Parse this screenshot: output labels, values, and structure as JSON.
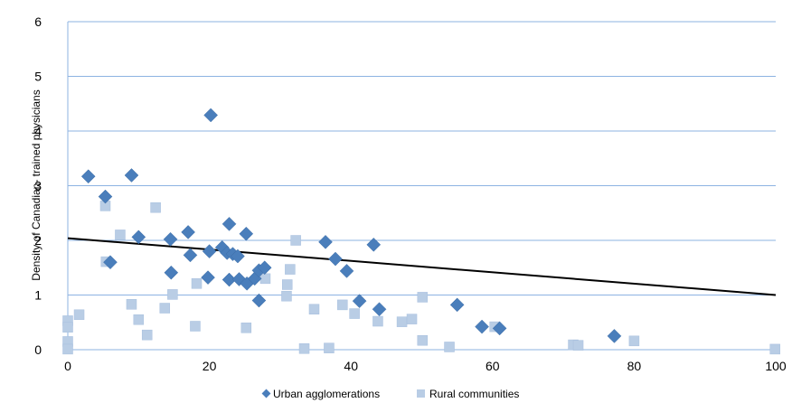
{
  "chart_data": {
    "type": "scatter",
    "title": "",
    "xlabel": "",
    "ylabel": "Density of Canadian- trained physicians",
    "xlim": [
      0,
      100
    ],
    "ylim": [
      0,
      6
    ],
    "xticks": [
      "0",
      "20",
      "40",
      "60",
      "80",
      "100"
    ],
    "yticks": [
      "0",
      "1",
      "2",
      "3",
      "4",
      "5",
      "6"
    ],
    "grid": "horizontal",
    "legend_position": "bottom",
    "series": [
      {
        "name": "Urban agglomerations",
        "marker": "diamond",
        "color": "#4A7EBB",
        "points": [
          [
            2.9,
            3.17
          ],
          [
            5.3,
            2.8
          ],
          [
            6,
            1.6
          ],
          [
            9,
            3.19
          ],
          [
            10,
            2.06
          ],
          [
            14.5,
            2.02
          ],
          [
            14.6,
            1.41
          ],
          [
            17,
            2.15
          ],
          [
            17.3,
            1.73
          ],
          [
            19.8,
            1.32
          ],
          [
            20,
            1.8
          ],
          [
            20.2,
            4.29
          ],
          [
            21.8,
            1.87
          ],
          [
            22.5,
            1.77
          ],
          [
            22.8,
            2.3
          ],
          [
            22.8,
            1.28
          ],
          [
            23.3,
            1.75
          ],
          [
            24,
            1.71
          ],
          [
            24.2,
            1.29
          ],
          [
            25.2,
            2.12
          ],
          [
            25.3,
            1.21
          ],
          [
            26.4,
            1.3
          ],
          [
            27,
            1.45
          ],
          [
            27,
            0.9
          ],
          [
            27.8,
            1.5
          ],
          [
            36.4,
            1.97
          ],
          [
            37.8,
            1.66
          ],
          [
            39.4,
            1.44
          ],
          [
            41.2,
            0.89
          ],
          [
            43.2,
            1.92
          ],
          [
            44,
            0.74
          ],
          [
            55,
            0.82
          ],
          [
            58.5,
            0.42
          ],
          [
            61,
            0.39
          ],
          [
            77.2,
            0.25
          ]
        ]
      },
      {
        "name": "Rural communities",
        "marker": "square",
        "color": "#B9CDE5",
        "points": [
          [
            0,
            0.53
          ],
          [
            0,
            0.41
          ],
          [
            0,
            0.15
          ],
          [
            0,
            0.01
          ],
          [
            1.6,
            0.64
          ],
          [
            5.3,
            2.63
          ],
          [
            5.4,
            1.61
          ],
          [
            7.4,
            2.1
          ],
          [
            9,
            0.83
          ],
          [
            10,
            0.55
          ],
          [
            11.2,
            0.27
          ],
          [
            12.4,
            2.6
          ],
          [
            13.7,
            0.76
          ],
          [
            14.8,
            1.01
          ],
          [
            18,
            0.43
          ],
          [
            18.2,
            1.21
          ],
          [
            25.2,
            0.4
          ],
          [
            27.9,
            1.3
          ],
          [
            30.9,
            0.98
          ],
          [
            31,
            1.19
          ],
          [
            31.4,
            1.47
          ],
          [
            32.2,
            2.0
          ],
          [
            33.4,
            0.02
          ],
          [
            34.8,
            0.74
          ],
          [
            36.9,
            0.03
          ],
          [
            38.8,
            0.82
          ],
          [
            40.5,
            0.66
          ],
          [
            43.8,
            0.52
          ],
          [
            47.2,
            0.51
          ],
          [
            48.6,
            0.56
          ],
          [
            50.1,
            0.96
          ],
          [
            50.1,
            0.17
          ],
          [
            53.9,
            0.05
          ],
          [
            60.3,
            0.42
          ],
          [
            71.4,
            0.09
          ],
          [
            72.1,
            0.08
          ],
          [
            80,
            0.16
          ],
          [
            99.9,
            0.01
          ]
        ]
      }
    ],
    "trendline": {
      "x": [
        0,
        100
      ],
      "y": [
        2.04,
        1.0
      ],
      "color": "#000000"
    }
  }
}
